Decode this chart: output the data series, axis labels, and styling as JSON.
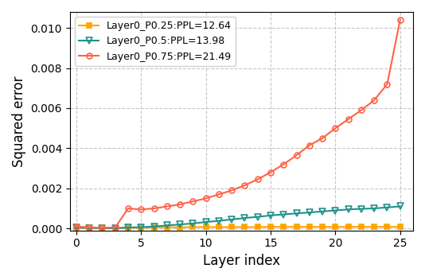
{
  "title": "",
  "xlabel": "Layer index",
  "ylabel": "Squared error",
  "xlim": [
    -0.5,
    26
  ],
  "ylim": [
    -0.0001,
    0.0108
  ],
  "yticks": [
    0.0,
    0.002,
    0.004,
    0.006,
    0.008,
    0.01
  ],
  "xticks": [
    0,
    5,
    10,
    15,
    20,
    25
  ],
  "series": [
    {
      "label": "Layer0_P0.25:PPL=12.64",
      "color": "#FFA500",
      "marker": "s",
      "markersize": 5,
      "linewidth": 1.5,
      "markerfill": "full",
      "values": [
        4e-05,
        3e-05,
        2e-05,
        2e-05,
        3e-05,
        4e-05,
        5e-05,
        6e-05,
        6e-05,
        7e-05,
        7e-05,
        7e-05,
        7e-05,
        7e-05,
        7e-05,
        8e-05,
        8e-05,
        8e-05,
        8e-05,
        8e-05,
        8e-05,
        8e-05,
        8e-05,
        8e-05,
        8e-05,
        8e-05
      ]
    },
    {
      "label": "Layer0_P0.5:PPL=13.98",
      "color": "#20918C",
      "marker": "v",
      "markersize": 6,
      "linewidth": 1.5,
      "markerfill": "none",
      "values": [
        5e-05,
        2e-05,
        1e-05,
        1e-05,
        5e-05,
        6e-05,
        0.0001,
        0.00015,
        0.0002,
        0.00025,
        0.00032,
        0.00038,
        0.00045,
        0.00052,
        0.00058,
        0.00065,
        0.0007,
        0.00075,
        0.0008,
        0.00085,
        0.0009,
        0.00095,
        0.00098,
        0.001,
        0.00105,
        0.0011
      ]
    },
    {
      "label": "Layer0_P0.75:PPL=21.49",
      "color": "#FF6347",
      "marker": "o",
      "markersize": 5,
      "linewidth": 1.5,
      "markerfill": "none",
      "values": [
        0.0001,
        5e-05,
        3e-05,
        5e-05,
        0.001,
        0.00095,
        0.001,
        0.0011,
        0.0012,
        0.00135,
        0.0015,
        0.0017,
        0.0019,
        0.00215,
        0.00245,
        0.0028,
        0.0032,
        0.00365,
        0.00415,
        0.0045,
        0.005,
        0.00545,
        0.0059,
        0.0064,
        0.0072,
        0.0104
      ]
    }
  ],
  "grid": true,
  "grid_linestyle": "--",
  "grid_alpha": 0.7,
  "legend_loc": "upper left",
  "figsize": [
    5.34,
    3.52
  ],
  "dpi": 100
}
